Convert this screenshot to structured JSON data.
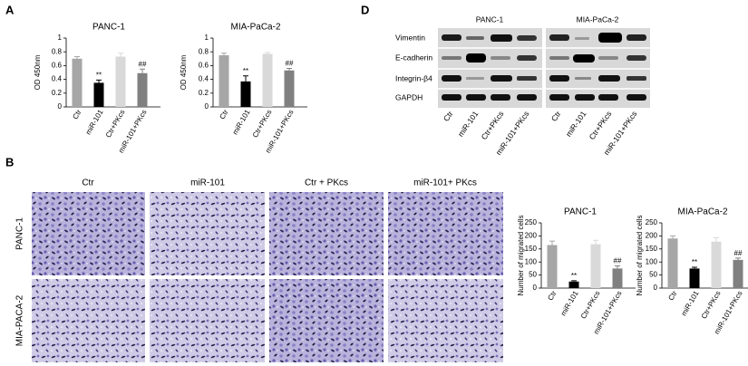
{
  "panels": [
    "A",
    "B",
    "D"
  ],
  "chart_data": [
    {
      "type": "bar",
      "title": "PANC-1",
      "y_label": "OD 450nm",
      "categories": [
        "Ctr",
        "miR-101",
        "Ctr+PKcs",
        "miR-101+PKcs"
      ],
      "values": [
        0.7,
        0.35,
        0.73,
        0.49
      ],
      "errors": [
        0.03,
        0.04,
        0.05,
        0.06
      ],
      "bar_labels": [
        null,
        "**",
        null,
        "##"
      ],
      "colors": [
        "#a6a6a6",
        "#000000",
        "#d9d9d9",
        "#808080"
      ],
      "ylim": [
        0,
        1
      ],
      "yticks": [
        0,
        0.2,
        0.4,
        0.6,
        0.8,
        1
      ]
    },
    {
      "type": "bar",
      "title": "MIA-PaCa-2",
      "y_label": "OD 450nm",
      "categories": [
        "Ctr",
        "miR-101",
        "Ctr+PKcs",
        "miR-101+PKcs"
      ],
      "values": [
        0.75,
        0.37,
        0.77,
        0.53
      ],
      "errors": [
        0.03,
        0.08,
        0.02,
        0.03
      ],
      "bar_labels": [
        null,
        "**",
        null,
        "##"
      ],
      "colors": [
        "#a6a6a6",
        "#000000",
        "#d9d9d9",
        "#808080"
      ],
      "ylim": [
        0,
        1
      ],
      "yticks": [
        0,
        0.2,
        0.4,
        0.6,
        0.8,
        1
      ]
    },
    {
      "type": "bar",
      "title": "PANC-1",
      "y_label": "Number of migrated cells",
      "categories": [
        "Ctr",
        "miR-101",
        "Ctr+PKcs",
        "miR-101+PKcs"
      ],
      "values": [
        165,
        25,
        168,
        75
      ],
      "errors": [
        15,
        3,
        15,
        10
      ],
      "bar_labels": [
        null,
        "**",
        null,
        "##"
      ],
      "colors": [
        "#a6a6a6",
        "#000000",
        "#d9d9d9",
        "#808080"
      ],
      "ylim": [
        0,
        250
      ],
      "yticks": [
        0,
        50,
        100,
        150,
        200,
        250
      ]
    },
    {
      "type": "bar",
      "title": "MIA-PaCa-2",
      "y_label": "Number of migrated cells",
      "categories": [
        "Ctr",
        "miR-101",
        "Ctr+PKcs",
        "miR-101+PKcs"
      ],
      "values": [
        190,
        75,
        178,
        108
      ],
      "errors": [
        10,
        5,
        15,
        7
      ],
      "bar_labels": [
        null,
        "**",
        null,
        "##"
      ],
      "colors": [
        "#a6a6a6",
        "#000000",
        "#d9d9d9",
        "#808080"
      ],
      "ylim": [
        0,
        250
      ],
      "yticks": [
        0,
        50,
        100,
        150,
        200,
        250
      ]
    }
  ],
  "western_blot": {
    "groups": [
      "PANC-1",
      "MIA-PaCa-2"
    ],
    "proteins": [
      "Vimentin",
      "E-cadherin",
      "Integrin-β4",
      "GAPDH"
    ],
    "lanes": [
      [
        "Ctr",
        "miR-101",
        "Ctr+PKcs",
        "miR-101+PKcs"
      ],
      [
        "Ctr",
        "miR-101",
        "Ctr+PKcs",
        "miR-101+PKcs"
      ]
    ]
  },
  "micrographs": {
    "columns": [
      "Ctr",
      "miR-101",
      "Ctr + PKcs",
      "miR-101+ PKcs"
    ],
    "rows": [
      "PANC-1",
      "MIA-PACA-2"
    ]
  }
}
